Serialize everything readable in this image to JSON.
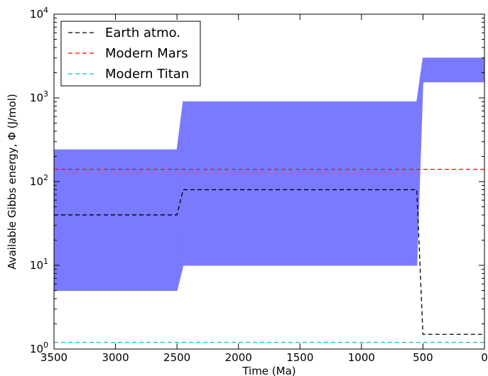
{
  "chart_data": {
    "type": "area",
    "xlabel": "Time (Ma)",
    "ylabel": "Available Gibbs energy, Φ (J/mol)",
    "xlim": [
      3500,
      0
    ],
    "ylim": [
      1,
      10000
    ],
    "yscale": "log",
    "grid": false,
    "legend_placement": "top-left",
    "x_ticks": [
      3500,
      3000,
      2500,
      2000,
      1500,
      1000,
      500,
      0
    ],
    "x_tick_labels": [
      "3500",
      "3000",
      "2500",
      "2000",
      "1500",
      "1000",
      "500",
      "0"
    ],
    "y_ticks": [
      1,
      10,
      100,
      1000,
      10000
    ],
    "y_tick_labels": [
      {
        "base": "10",
        "exp": "0"
      },
      {
        "base": "10",
        "exp": "1"
      },
      {
        "base": "10",
        "exp": "2"
      },
      {
        "base": "10",
        "exp": "3"
      },
      {
        "base": "10",
        "exp": "4"
      }
    ],
    "bands": [
      {
        "color": "#7a7aff",
        "x": [
          3500,
          2500,
          2450,
          550,
          500,
          0
        ],
        "upper": [
          240,
          240,
          900,
          900,
          3000,
          3000
        ],
        "lower": [
          5,
          5,
          140,
          140,
          1550,
          1550
        ]
      },
      {
        "color": "#b2b2ff",
        "x": [
          2450,
          550
        ],
        "upper": [
          140,
          140
        ],
        "lower": [
          10,
          10
        ]
      },
      {
        "color": "#7a7aff",
        "x": [
          2500,
          2450,
          550,
          500
        ],
        "upper": [
          5,
          140,
          140,
          1550
        ],
        "lower": [
          5,
          10,
          10,
          1550
        ]
      }
    ],
    "series": [
      {
        "name": "Earth atmo.",
        "color": "#000000",
        "x": [
          3500,
          2500,
          2450,
          550,
          500,
          0
        ],
        "values": [
          40,
          40,
          80,
          80,
          1.5,
          1.5
        ]
      },
      {
        "name": "Modern Mars",
        "color": "#ff0000",
        "x": [
          3500,
          0
        ],
        "values": [
          140,
          140
        ]
      },
      {
        "name": "Modern Titan",
        "color": "#00bfbf",
        "x": [
          3500,
          0
        ],
        "values": [
          1.2,
          1.2
        ]
      }
    ]
  }
}
